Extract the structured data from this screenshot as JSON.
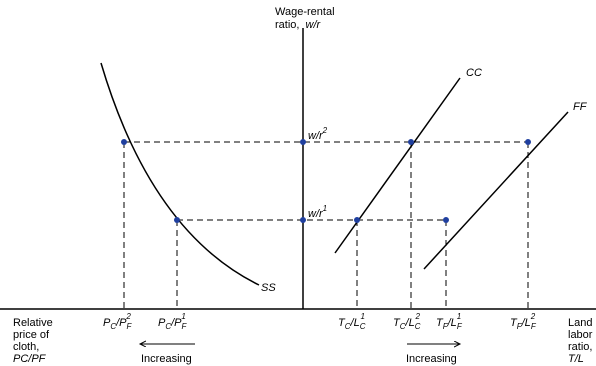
{
  "colors": {
    "ink": "#000000",
    "point": "#1f3f9f",
    "background": "#ffffff"
  },
  "vertical_axis": {
    "title_line1": "Wage-rental",
    "title_line2": "ratio,",
    "title_var": "w/r"
  },
  "left_axis": {
    "line1": "Relative",
    "line2": "price of",
    "line3": "cloth,",
    "var": "PC/PF"
  },
  "right_axis": {
    "line1": "Land",
    "line2": "labor",
    "line3": "ratio,",
    "var": "T/L"
  },
  "curves": {
    "ss": "SS",
    "cc": "CC",
    "ff": "FF"
  },
  "levels": {
    "high": "w/r",
    "high_sup": "2",
    "low": "w/r",
    "low_sup": "1"
  },
  "price_ticks": [
    {
      "main": "P",
      "sub1": "C",
      "mid": "/P",
      "sub2": "F",
      "sup": "2"
    },
    {
      "main": "P",
      "sub1": "C",
      "mid": "/P",
      "sub2": "F",
      "sup": "1"
    }
  ],
  "ratio_ticks": [
    {
      "main": "T",
      "sub1": "C",
      "mid": "/L",
      "sub2": "C",
      "sup": "1"
    },
    {
      "main": "T",
      "sub1": "C",
      "mid": "/L",
      "sub2": "C",
      "sup": "2"
    },
    {
      "main": "T",
      "sub1": "F",
      "mid": "/L",
      "sub2": "F",
      "sup": "1"
    },
    {
      "main": "T",
      "sub1": "F",
      "mid": "/L",
      "sub2": "F",
      "sup": "2"
    }
  ],
  "arrows": {
    "left_label": "Increasing",
    "right_label": "Increasing"
  }
}
